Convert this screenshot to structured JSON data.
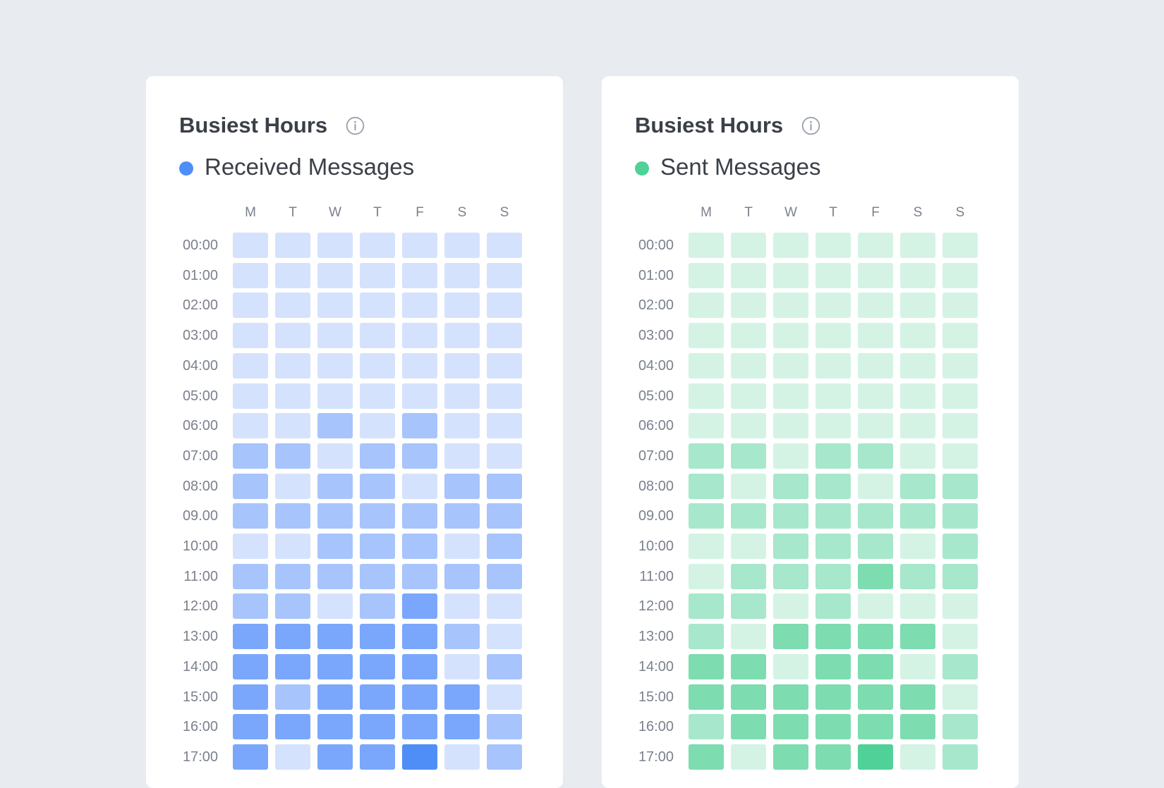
{
  "chart_data": [
    {
      "type": "heatmap",
      "title": "Busiest Hours",
      "legend": {
        "label": "Received Messages",
        "color": "#4f8ef7"
      },
      "x": [
        "M",
        "T",
        "W",
        "T",
        "F",
        "S",
        "S"
      ],
      "y": [
        "00:00",
        "01:00",
        "02:00",
        "03:00",
        "04:00",
        "05:00",
        "06:00",
        "07:00",
        "08:00",
        "09.00",
        "10:00",
        "11:00",
        "12:00",
        "13:00",
        "14:00",
        "15:00",
        "16:00",
        "17:00"
      ],
      "values": [
        [
          0,
          0,
          0,
          0,
          0,
          0,
          0
        ],
        [
          0,
          0,
          0,
          0,
          0,
          0,
          0
        ],
        [
          0,
          0,
          0,
          0,
          0,
          0,
          0
        ],
        [
          0,
          0,
          0,
          0,
          0,
          0,
          0
        ],
        [
          0,
          0,
          0,
          0,
          0,
          0,
          0
        ],
        [
          0,
          0,
          0,
          0,
          0,
          0,
          0
        ],
        [
          0,
          0,
          1,
          0,
          1,
          0,
          0
        ],
        [
          1,
          1,
          0,
          1,
          1,
          0,
          0
        ],
        [
          1,
          0,
          1,
          1,
          0,
          1,
          1
        ],
        [
          1,
          1,
          1,
          1,
          1,
          1,
          1
        ],
        [
          0,
          0,
          1,
          1,
          1,
          0,
          1
        ],
        [
          1,
          1,
          1,
          1,
          1,
          1,
          1
        ],
        [
          1,
          1,
          0,
          1,
          2,
          0,
          0
        ],
        [
          2,
          2,
          2,
          2,
          2,
          1,
          0
        ],
        [
          2,
          2,
          2,
          2,
          2,
          0,
          1
        ],
        [
          2,
          1,
          2,
          2,
          2,
          2,
          0
        ],
        [
          2,
          2,
          2,
          2,
          2,
          2,
          1
        ],
        [
          2,
          0,
          2,
          2,
          3,
          0,
          1
        ]
      ],
      "levels": [
        "#d5e2fd",
        "#a7c4fc",
        "#7aa7fb",
        "#4f8ef7"
      ]
    },
    {
      "type": "heatmap",
      "title": "Busiest Hours",
      "legend": {
        "label": "Sent Messages",
        "color": "#4fd197"
      },
      "x": [
        "M",
        "T",
        "W",
        "T",
        "F",
        "S",
        "S"
      ],
      "y": [
        "00:00",
        "01:00",
        "02:00",
        "03:00",
        "04:00",
        "05:00",
        "06:00",
        "07:00",
        "08:00",
        "09.00",
        "10:00",
        "11:00",
        "12:00",
        "13:00",
        "14:00",
        "15:00",
        "16:00",
        "17:00"
      ],
      "values": [
        [
          0,
          0,
          0,
          0,
          0,
          0,
          0
        ],
        [
          0,
          0,
          0,
          0,
          0,
          0,
          0
        ],
        [
          0,
          0,
          0,
          0,
          0,
          0,
          0
        ],
        [
          0,
          0,
          0,
          0,
          0,
          0,
          0
        ],
        [
          0,
          0,
          0,
          0,
          0,
          0,
          0
        ],
        [
          0,
          0,
          0,
          0,
          0,
          0,
          0
        ],
        [
          0,
          0,
          0,
          0,
          0,
          0,
          0
        ],
        [
          1,
          1,
          0,
          1,
          1,
          0,
          0
        ],
        [
          1,
          0,
          1,
          1,
          0,
          1,
          1
        ],
        [
          1,
          1,
          1,
          1,
          1,
          1,
          1
        ],
        [
          0,
          0,
          1,
          1,
          1,
          0,
          1
        ],
        [
          0,
          1,
          1,
          1,
          2,
          1,
          1
        ],
        [
          1,
          1,
          0,
          1,
          0,
          0,
          0
        ],
        [
          1,
          0,
          2,
          2,
          2,
          2,
          0
        ],
        [
          2,
          2,
          0,
          2,
          2,
          0,
          1
        ],
        [
          2,
          2,
          2,
          2,
          2,
          2,
          0
        ],
        [
          1,
          2,
          2,
          2,
          2,
          2,
          1
        ],
        [
          2,
          0,
          2,
          2,
          3,
          0,
          1
        ]
      ],
      "levels": [
        "#d4f3e5",
        "#a7e7cb",
        "#7ddcb0",
        "#4fd197"
      ]
    }
  ],
  "icons": {
    "info": "info-circle-icon"
  }
}
